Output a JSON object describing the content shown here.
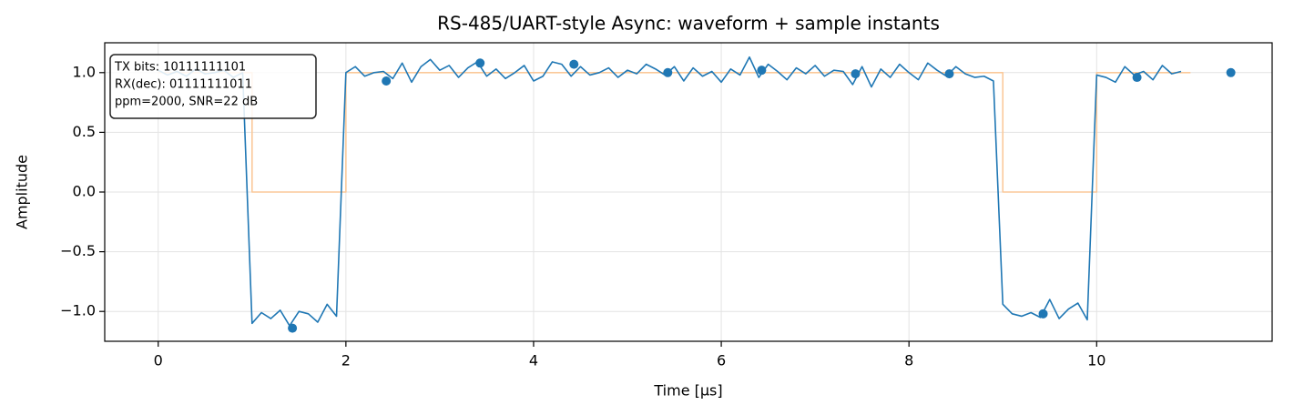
{
  "chart_data": {
    "type": "line",
    "title": "RS-485/UART-style Async: waveform + sample instants",
    "xlabel": "Time [μs]",
    "ylabel": "Amplitude",
    "xlim": [
      -0.57,
      11.87
    ],
    "ylim": [
      -1.25,
      1.25
    ],
    "xticks": [
      0,
      2,
      4,
      6,
      8,
      10
    ],
    "yticks": [
      {
        "value": -1.0,
        "label": "−1.0"
      },
      {
        "value": -0.5,
        "label": "−0.5"
      },
      {
        "value": 0.0,
        "label": "0.0"
      },
      {
        "value": 0.5,
        "label": "0.5"
      },
      {
        "value": 1.0,
        "label": "1.0"
      }
    ],
    "grid": true,
    "annotation": [
      "TX bits: 10111111101",
      "RX(dec): 01111111011",
      "ppm=2000, SNR=22 dB"
    ],
    "series": [
      {
        "type": "line",
        "color": "#fbc99a",
        "x": [
          0,
          1,
          1,
          2,
          2,
          9,
          9,
          10,
          10,
          11
        ],
        "values": [
          1,
          1,
          0,
          0,
          1,
          1,
          0,
          0,
          1,
          1
        ]
      },
      {
        "type": "line",
        "color": "#1f77b4",
        "x": [
          0.0,
          0.1,
          0.2,
          0.3,
          0.4,
          0.5,
          0.6,
          0.7,
          0.8,
          0.9,
          1.0,
          1.1,
          1.2,
          1.3,
          1.4,
          1.5,
          1.6,
          1.7,
          1.8,
          1.9,
          2.0,
          2.1,
          2.2,
          2.3,
          2.4,
          2.5,
          2.6,
          2.7,
          2.8,
          2.9,
          3.0,
          3.1,
          3.2,
          3.3,
          3.4,
          3.5,
          3.6,
          3.7,
          3.8,
          3.9,
          4.0,
          4.1,
          4.2,
          4.3,
          4.4,
          4.5,
          4.6,
          4.7,
          4.8,
          4.9,
          5.0,
          5.1,
          5.2,
          5.3,
          5.4,
          5.5,
          5.6,
          5.7,
          5.8,
          5.9,
          6.0,
          6.1,
          6.2,
          6.3,
          6.4,
          6.5,
          6.6,
          6.7,
          6.8,
          6.9,
          7.0,
          7.1,
          7.2,
          7.3,
          7.4,
          7.5,
          7.6,
          7.7,
          7.8,
          7.9,
          8.0,
          8.1,
          8.2,
          8.3,
          8.4,
          8.5,
          8.6,
          8.7,
          8.8,
          8.9,
          9.0,
          9.1,
          9.2,
          9.3,
          9.4,
          9.5,
          9.6,
          9.7,
          9.8,
          9.9,
          10.0,
          10.1,
          10.2,
          10.3,
          10.4,
          10.5,
          10.6,
          10.7,
          10.8,
          10.9
        ],
        "values": [
          1.02,
          0.98,
          1.01,
          0.97,
          1.03,
          0.99,
          1.0,
          1.02,
          0.96,
          1.0,
          -1.1,
          -1.01,
          -1.06,
          -0.99,
          -1.12,
          -1.0,
          -1.02,
          -1.09,
          -0.94,
          -1.04,
          1.0,
          1.05,
          0.97,
          1.0,
          1.01,
          0.95,
          1.08,
          0.92,
          1.05,
          1.11,
          1.02,
          1.06,
          0.96,
          1.04,
          1.09,
          0.97,
          1.03,
          0.95,
          1.0,
          1.06,
          0.93,
          0.97,
          1.09,
          1.07,
          0.97,
          1.05,
          0.98,
          1.0,
          1.04,
          0.96,
          1.02,
          0.99,
          1.07,
          1.03,
          0.98,
          1.05,
          0.93,
          1.04,
          0.97,
          1.01,
          0.92,
          1.03,
          0.98,
          1.13,
          0.96,
          1.07,
          1.01,
          0.94,
          1.04,
          0.99,
          1.06,
          0.97,
          1.02,
          1.01,
          0.9,
          1.05,
          0.88,
          1.03,
          0.96,
          1.07,
          1.0,
          0.94,
          1.08,
          1.02,
          0.97,
          1.05,
          0.99,
          0.96,
          0.97,
          0.93,
          -0.94,
          -1.02,
          -1.04,
          -1.01,
          -1.05,
          -0.9,
          -1.06,
          -0.98,
          -0.93,
          -1.07,
          0.98,
          0.96,
          0.92,
          1.05,
          0.98,
          1.01,
          0.94,
          1.06,
          0.99,
          1.01
        ]
      },
      {
        "type": "scatter",
        "color": "#1f77b4",
        "x": [
          1.43,
          2.43,
          3.43,
          4.43,
          5.43,
          6.43,
          7.43,
          8.43,
          9.43,
          10.43,
          11.43
        ],
        "values": [
          -1.14,
          0.93,
          1.08,
          1.07,
          1.0,
          1.02,
          0.99,
          0.99,
          -1.02,
          0.96,
          1.0
        ]
      }
    ]
  }
}
